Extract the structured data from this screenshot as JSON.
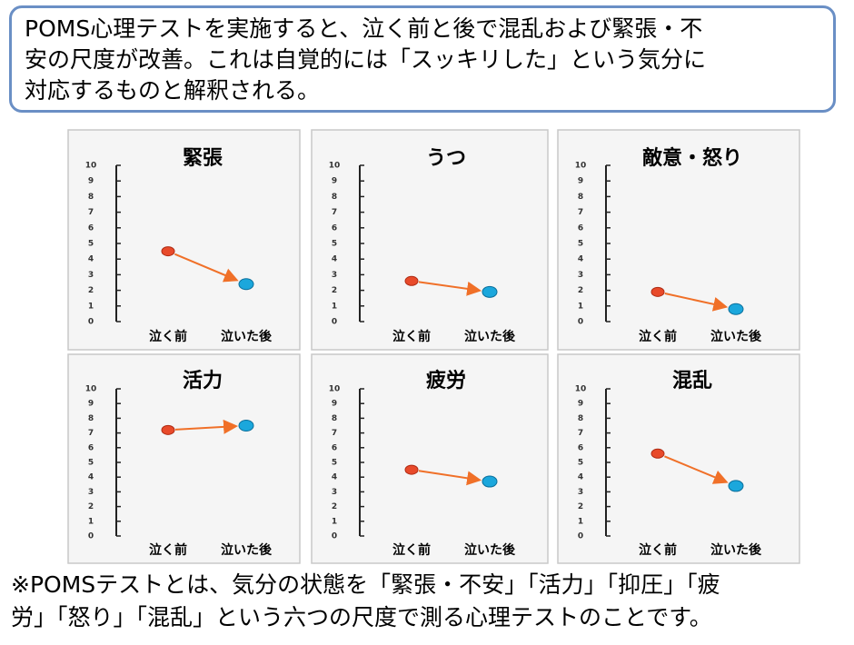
{
  "intro": [
    "POMS心理テストを実施すると、泣く前と後で混乱および緊張・不",
    "安の尺度が改善。これは自覚的には「スッキリした」という気分に",
    "対応するものと解釈される。"
  ],
  "chart_data": [
    {
      "type": "dot-arrow",
      "title": "緊張",
      "categories": [
        "泣く前",
        "泣いた後"
      ],
      "values": [
        4.5,
        2.4
      ],
      "colors": [
        "#e84a2a",
        "#1ba7dc"
      ],
      "ylim": [
        0,
        10
      ],
      "yticks": [
        0,
        1,
        2,
        3,
        4,
        5,
        6,
        7,
        8,
        9,
        10
      ]
    },
    {
      "type": "dot-arrow",
      "title": "うつ",
      "categories": [
        "泣く前",
        "泣いた後"
      ],
      "values": [
        2.6,
        1.9
      ],
      "colors": [
        "#e84a2a",
        "#1ba7dc"
      ],
      "ylim": [
        0,
        10
      ],
      "yticks": [
        0,
        1,
        2,
        3,
        4,
        5,
        6,
        7,
        8,
        9,
        10
      ]
    },
    {
      "type": "dot-arrow",
      "title": "敵意・怒り",
      "categories": [
        "泣く前",
        "泣いた後"
      ],
      "values": [
        1.9,
        0.8
      ],
      "colors": [
        "#e84a2a",
        "#1ba7dc"
      ],
      "ylim": [
        0,
        10
      ],
      "yticks": [
        0,
        1,
        2,
        3,
        4,
        5,
        6,
        7,
        8,
        9,
        10
      ]
    },
    {
      "type": "dot-arrow",
      "title": "活力",
      "categories": [
        "泣く前",
        "泣いた後"
      ],
      "values": [
        7.2,
        7.5
      ],
      "colors": [
        "#e84a2a",
        "#1ba7dc"
      ],
      "ylim": [
        0,
        10
      ],
      "yticks": [
        0,
        1,
        2,
        3,
        4,
        5,
        6,
        7,
        8,
        9,
        10
      ]
    },
    {
      "type": "dot-arrow",
      "title": "疲労",
      "categories": [
        "泣く前",
        "泣いた後"
      ],
      "values": [
        4.5,
        3.7
      ],
      "colors": [
        "#e84a2a",
        "#1ba7dc"
      ],
      "ylim": [
        0,
        10
      ],
      "yticks": [
        0,
        1,
        2,
        3,
        4,
        5,
        6,
        7,
        8,
        9,
        10
      ]
    },
    {
      "type": "dot-arrow",
      "title": "混乱",
      "categories": [
        "泣く前",
        "泣いた後"
      ],
      "values": [
        5.6,
        3.4
      ],
      "colors": [
        "#e84a2a",
        "#1ba7dc"
      ],
      "ylim": [
        0,
        10
      ],
      "yticks": [
        0,
        1,
        2,
        3,
        4,
        5,
        6,
        7,
        8,
        9,
        10
      ]
    }
  ],
  "note": [
    "※POMSテストとは、気分の状態を「緊張・不安」「活力」「抑圧」「疲",
    "労」「怒り」「混乱」という六つの尺度で測る心理テストのことです。"
  ]
}
